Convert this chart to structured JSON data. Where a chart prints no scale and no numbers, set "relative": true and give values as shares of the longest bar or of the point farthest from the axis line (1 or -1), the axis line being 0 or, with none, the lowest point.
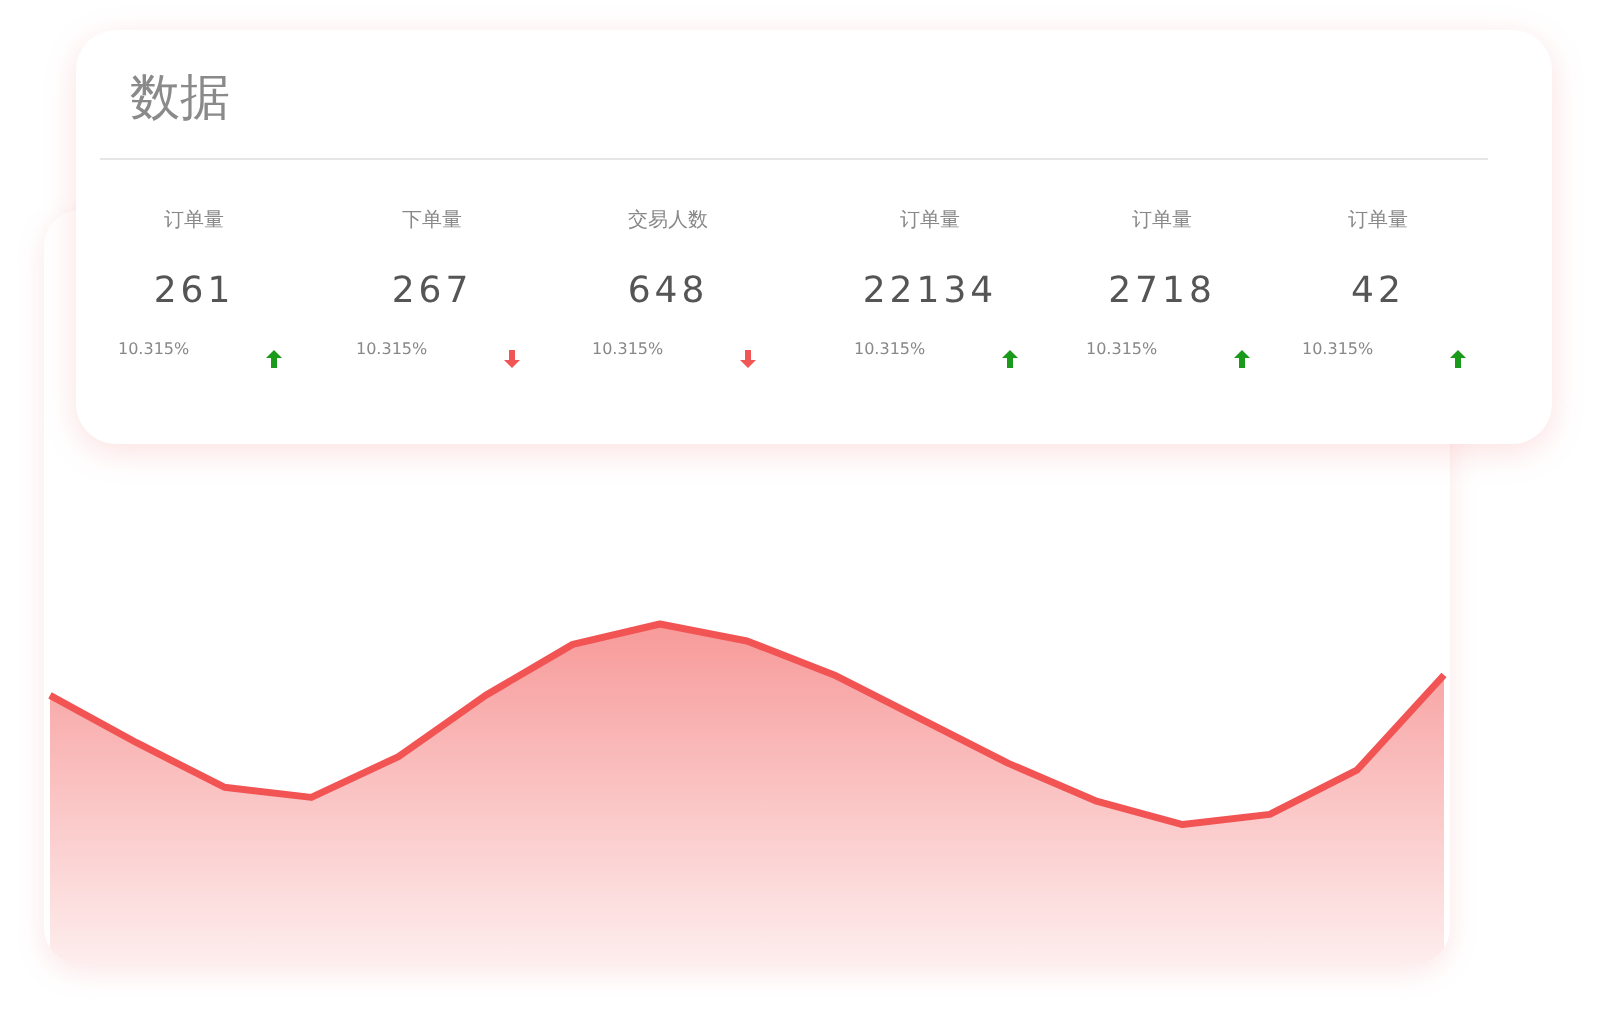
{
  "chart_data": [
    {
      "type": "other",
      "title": "数据",
      "categories": [
        "订单量",
        "下单量",
        "交易人数",
        "订单量",
        "订单量",
        "订单量"
      ],
      "annotations": [
        "261",
        "267",
        "648",
        "22134",
        "2718",
        "42",
        "10.315%",
        "10.315%",
        "10.315%",
        "10.315%",
        "10.315%",
        "10.315%"
      ]
    },
    {
      "type": "area",
      "relative": true,
      "categories": [
        null,
        null,
        null,
        null,
        null,
        null,
        null,
        null,
        null,
        null,
        null,
        null,
        null,
        null,
        null,
        null,
        null
      ],
      "series": [
        {
          "color": "#f25454",
          "values": [
            0.79,
            0.65,
            0.52,
            0.49,
            0.61,
            0.79,
            0.94,
            1,
            0.95,
            0.85,
            0.72,
            0.59,
            0.48,
            0.41,
            0.44,
            0.57,
            0.85
          ]
        }
      ],
      "tick_labels": false
    }
  ]
}
